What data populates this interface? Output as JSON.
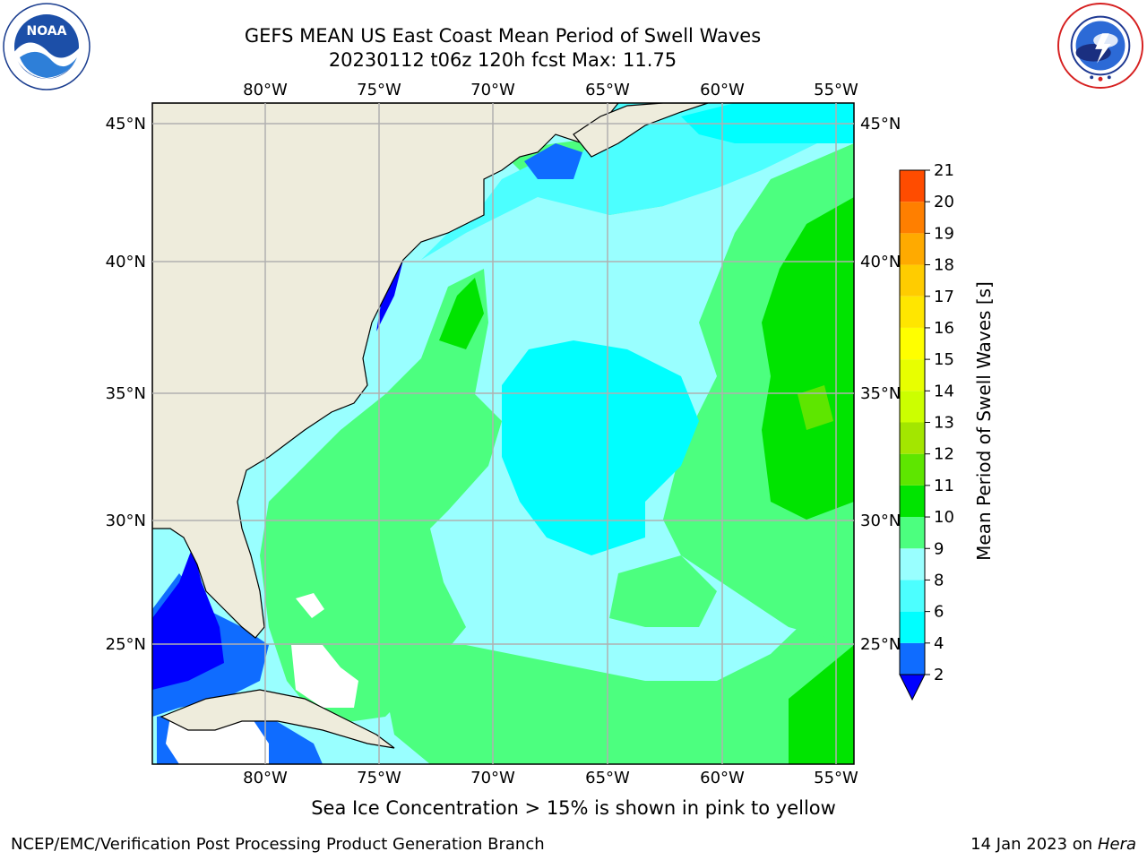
{
  "title": {
    "line1": "GEFS MEAN US East Coast Mean Period of Swell Waves",
    "line2": "20230112 t06z 120h fcst   Max: 11.75"
  },
  "logos": {
    "noaa": {
      "icon": "noaa-logo",
      "text": "NOAA"
    },
    "nws": {
      "icon": "national-weather-service-logo",
      "text": "NATIONAL WEATHER SERVICE"
    }
  },
  "map": {
    "projection": "cylindrical",
    "lon_range": [
      -85,
      -54
    ],
    "lat_range": [
      20.5,
      46
    ],
    "lon_ticks": [
      "80°W",
      "75°W",
      "70°W",
      "65°W",
      "60°W",
      "55°W"
    ],
    "lat_ticks": [
      "45°N",
      "40°N",
      "35°N",
      "30°N",
      "25°N"
    ],
    "land_color": "#eeecdc",
    "grid_color": "#b0b0b0",
    "dominant_fields": [
      {
        "region": "central Atlantic",
        "range": "6-8 s",
        "color": "#00ffff"
      },
      {
        "region": "open ocean south",
        "range": "8-9 s",
        "color": "#99ffff"
      },
      {
        "region": "coastal shelf / Sargasso",
        "range": "9-10 s",
        "color": "#4cff7f"
      },
      {
        "region": "east of 60°W",
        "range": "10-11 s",
        "color": "#00e400"
      },
      {
        "region": "near-shore / Gulf of Mexico",
        "range": "2-4 s",
        "color": "#0f3ef8"
      }
    ]
  },
  "colorbar": {
    "label": "Mean Period of Swell Waves [s]",
    "extend": "min",
    "ticks": [
      "2",
      "4",
      "6",
      "8",
      "9",
      "10",
      "11",
      "12",
      "13",
      "14",
      "15",
      "16",
      "17",
      "18",
      "19",
      "20",
      "21"
    ],
    "colors": [
      "#0f6cff",
      "#00ffff",
      "#4cffff",
      "#99ffff",
      "#4cff7f",
      "#00e400",
      "#5ee600",
      "#a3e600",
      "#ccff00",
      "#e8ff00",
      "#ffff00",
      "#ffe600",
      "#ffcc00",
      "#ffaa00",
      "#ff7f00",
      "#ff4c00",
      "#ff0000",
      "#ff0000"
    ],
    "under_color": "#0000ff"
  },
  "caption": "Sea Ice Concentration > 15% is shown in pink to yellow",
  "footer": {
    "left": "NCEP/EMC/Verification Post Processing Product Generation Branch",
    "right_date": "14 Jan 2023 on ",
    "right_host": "Hera"
  }
}
